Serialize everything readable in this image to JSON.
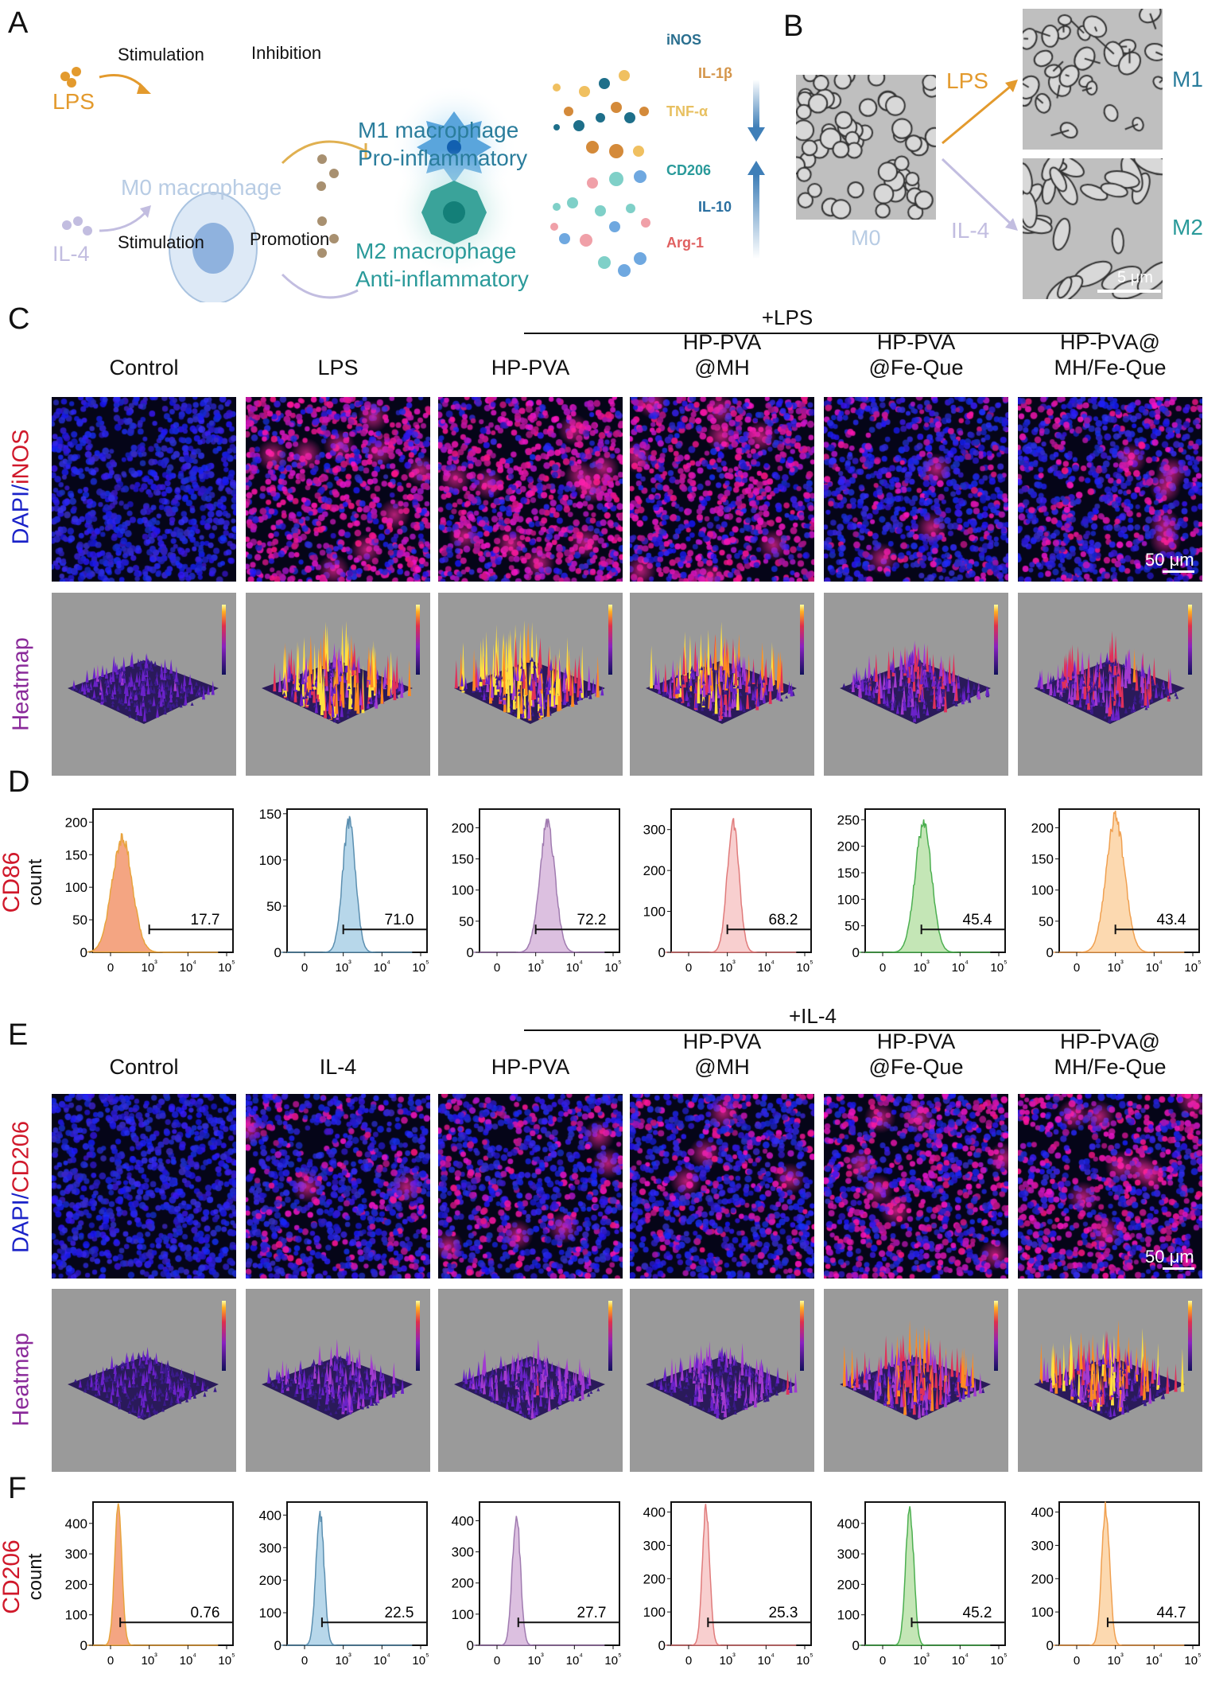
{
  "panel_labels": {
    "a": "A",
    "b": "B",
    "c": "C",
    "d": "D",
    "e": "E",
    "f": "F"
  },
  "panel_a": {
    "lps": "LPS",
    "il4": "IL-4",
    "stim_top": "Stimulation",
    "stim_bottom": "Stimulation",
    "inhibition": "Inhibition",
    "promotion": "Promotion",
    "m0": "M0 macrophage",
    "m1_line1": "M1 macrophage",
    "m1_line2": "Pro-inflammatory",
    "m2_line1": "M2 macrophage",
    "m2_line2": "Anti-inflammatory",
    "m1_markers": [
      {
        "label": "iNOS",
        "color": "#2a6f8f"
      },
      {
        "label": "IL-1β",
        "color": "#d4954a"
      },
      {
        "label": "TNF-α",
        "color": "#e8c060"
      }
    ],
    "m2_markers": [
      {
        "label": "CD206",
        "color": "#2a9a9a"
      },
      {
        "label": "IL-10",
        "color": "#2a6fa0"
      },
      {
        "label": "Arg-1",
        "color": "#e06060"
      }
    ],
    "colors": {
      "lps": "#e39a2d",
      "il4": "#c2bde0",
      "m0": "#b8cce4",
      "m1": "#2a7d9c",
      "m2": "#2a9a9a"
    }
  },
  "panel_b": {
    "m0": "M0",
    "m1": "M1",
    "m2": "M2",
    "lps": "LPS",
    "il4": "IL-4",
    "scale": "5 μm"
  },
  "panel_c": {
    "treatment": "+LPS",
    "columns": [
      "Control",
      "LPS",
      "HP-PVA",
      "HP-PVA\n@MH",
      "HP-PVA\n@Fe-Que",
      "HP-PVA@\nMH/Fe-Que"
    ],
    "row1_label_a": "DAPI/",
    "row1_label_b": "iNOS",
    "row2_label": "Heatmap",
    "scale": "50 μm",
    "red_signal": [
      0.0,
      0.75,
      0.8,
      0.65,
      0.25,
      0.35
    ],
    "heatmap_intensity": [
      0.25,
      0.85,
      0.95,
      0.8,
      0.5,
      0.55
    ]
  },
  "panel_d": {
    "ylabel_marker": "CD86",
    "ylabel": "count",
    "x_ticks": [
      "0",
      "10³",
      "10⁴",
      "10⁵"
    ],
    "histograms": [
      {
        "gate": "17.7",
        "y_ticks": [
          0,
          50,
          100,
          150,
          200
        ],
        "ymax": 220,
        "peak_count": 175,
        "peak_at": 0.3,
        "spread": 0.55,
        "fill": "#f4a582",
        "stroke": "#e8a33c"
      },
      {
        "gate": "71.0",
        "y_ticks": [
          0,
          50,
          100,
          150
        ],
        "ymax": 155,
        "peak_count": 140,
        "peak_at": 1.15,
        "spread": 0.35,
        "fill": "#b7d7ea",
        "stroke": "#5b8fb0"
      },
      {
        "gate": "72.2",
        "y_ticks": [
          0,
          50,
          100,
          150,
          200
        ],
        "ymax": 230,
        "peak_count": 205,
        "peak_at": 1.3,
        "spread": 0.42,
        "fill": "#dcc0e0",
        "stroke": "#a07bb0"
      },
      {
        "gate": "68.2",
        "y_ticks": [
          0,
          100,
          200,
          300
        ],
        "ymax": 350,
        "peak_count": 320,
        "peak_at": 1.15,
        "spread": 0.32,
        "fill": "#f8cfcf",
        "stroke": "#e07b7b"
      },
      {
        "gate": "45.4",
        "y_ticks": [
          0,
          50,
          100,
          150,
          200,
          250
        ],
        "ymax": 270,
        "peak_count": 240,
        "peak_at": 1.05,
        "spread": 0.45,
        "fill": "#c4e6b6",
        "stroke": "#4caf50"
      },
      {
        "gate": "43.4",
        "y_ticks": [
          0,
          50,
          100,
          150,
          200
        ],
        "ymax": 230,
        "peak_count": 215,
        "peak_at": 1.0,
        "spread": 0.5,
        "fill": "#fcd9b0",
        "stroke": "#f0a050"
      }
    ]
  },
  "panel_e": {
    "treatment": "+IL-4",
    "columns": [
      "Control",
      "IL-4",
      "HP-PVA",
      "HP-PVA\n@MH",
      "HP-PVA\n@Fe-Que",
      "HP-PVA@\nMH/Fe-Que"
    ],
    "row1_label_a": "DAPI/",
    "row1_label_b": "CD206",
    "row2_label": "Heatmap",
    "scale": "50 μm",
    "red_signal": [
      0.0,
      0.25,
      0.35,
      0.3,
      0.55,
      0.6
    ],
    "heatmap_intensity": [
      0.2,
      0.35,
      0.4,
      0.4,
      0.7,
      0.8
    ]
  },
  "panel_f": {
    "ylabel_marker": "CD206",
    "ylabel": "count",
    "x_ticks": [
      "0",
      "10³",
      "10⁴",
      "10⁵"
    ],
    "histograms": [
      {
        "gate": "0.76",
        "y_ticks": [
          0,
          100,
          200,
          300,
          400
        ],
        "ymax": 470,
        "peak_count": 450,
        "peak_at": 0.2,
        "spread": 0.2,
        "fill": "#f4a582",
        "stroke": "#e8a33c"
      },
      {
        "gate": "22.5",
        "y_ticks": [
          0,
          100,
          200,
          300,
          400
        ],
        "ymax": 440,
        "peak_count": 405,
        "peak_at": 0.4,
        "spread": 0.22,
        "fill": "#b7d7ea",
        "stroke": "#5b8fb0"
      },
      {
        "gate": "27.7",
        "y_ticks": [
          0,
          100,
          200,
          300,
          400
        ],
        "ymax": 460,
        "peak_count": 420,
        "peak_at": 0.5,
        "spread": 0.22,
        "fill": "#dcc0e0",
        "stroke": "#a07bb0"
      },
      {
        "gate": "25.3",
        "y_ticks": [
          0,
          100,
          200,
          300,
          400
        ],
        "ymax": 430,
        "peak_count": 410,
        "peak_at": 0.45,
        "spread": 0.2,
        "fill": "#f8cfcf",
        "stroke": "#e07b7b"
      },
      {
        "gate": "45.2",
        "y_ticks": [
          0,
          100,
          200,
          300,
          400
        ],
        "ymax": 470,
        "peak_count": 450,
        "peak_at": 0.7,
        "spread": 0.22,
        "fill": "#c4e6b6",
        "stroke": "#4caf50"
      },
      {
        "gate": "44.7",
        "y_ticks": [
          0,
          100,
          200,
          300,
          400
        ],
        "ymax": 430,
        "peak_count": 410,
        "peak_at": 0.75,
        "spread": 0.22,
        "fill": "#fcd9b0",
        "stroke": "#f0a050"
      }
    ]
  }
}
